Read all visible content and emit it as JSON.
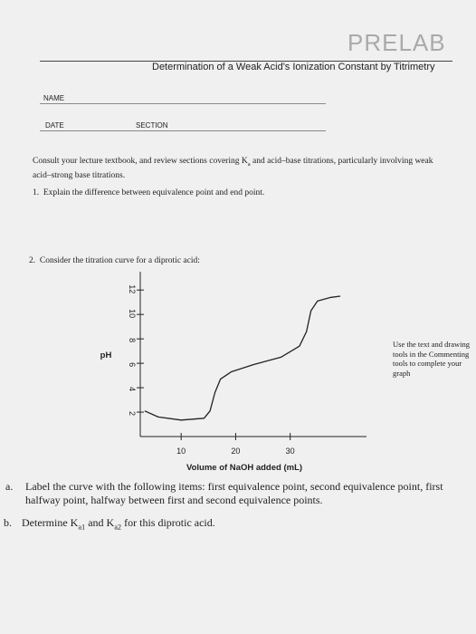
{
  "header": {
    "title": "PRELAB",
    "subtitle": "Determination of a Weak Acid's Ionization Constant by Titrimetry"
  },
  "fields": {
    "name": "NAME",
    "date": "DATE",
    "section": "SECTION"
  },
  "intro": [
    "Consult your lecture textbook, and review sections covering K",
    "a",
    " and acid–base titrations, particularly involving weak acid–strong base titrations."
  ],
  "q1": {
    "number": "1.",
    "text": "Explain the difference between equivalence point and end point."
  },
  "q2": {
    "number": "2.",
    "text": "Consider the titration curve for a diprotic acid:"
  },
  "chart_data": {
    "type": "line",
    "xlabel": "Volume of NaOH added (mL)",
    "ylabel": "pH",
    "x": [
      3.3,
      5.8,
      10,
      14.2,
      15.3,
      16.2,
      17.2,
      19.2,
      23.3,
      28.3,
      31.7,
      33,
      33.8,
      35,
      37.5,
      39.2
    ],
    "series": [
      {
        "color": "#222222",
        "values": [
          2.1,
          1.6,
          1.35,
          1.5,
          2.1,
          3.6,
          4.7,
          5.3,
          5.9,
          6.5,
          7.4,
          8.6,
          10.3,
          11.1,
          11.4,
          11.5
        ]
      }
    ],
    "xlim": [
      2.5,
      44
    ],
    "ylim": [
      0,
      13.5
    ],
    "xticks": [
      10,
      20,
      30
    ],
    "yticks": [
      2,
      4,
      6,
      8,
      10,
      12
    ]
  },
  "side_note": "Use the text and drawing tools in the Commenting tools to complete your graph",
  "qa": {
    "letter": "a.",
    "text": "Label the curve with the following items: first equivalence point, second equivalence point, first halfway point, halfway between first and second equivalence points."
  },
  "qb": {
    "letter": "b.",
    "parts": [
      "Determine K",
      "a1",
      " and K",
      "a2",
      " for this diprotic acid."
    ]
  }
}
